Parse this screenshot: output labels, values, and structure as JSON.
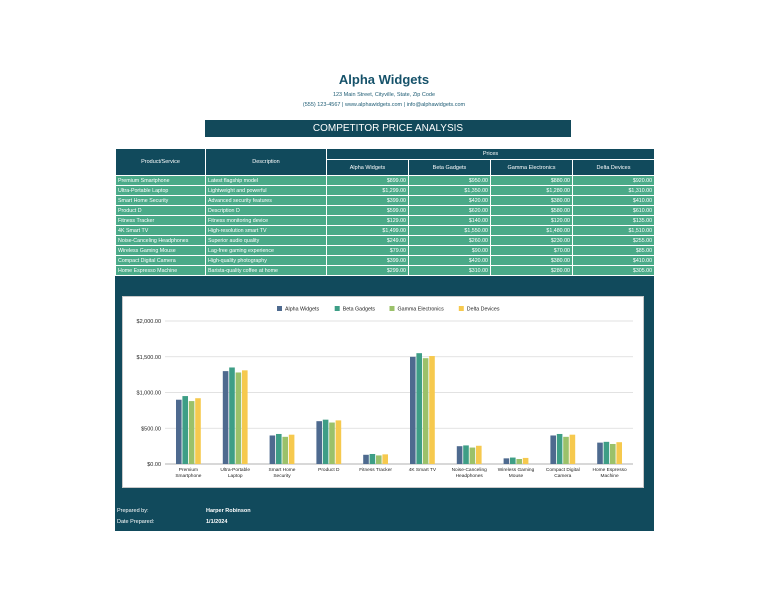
{
  "header": {
    "company": "Alpha Widgets",
    "address": "123 Main Street, Cityville, State, Zip Code",
    "contact": "(555) 123-4567 | www.alphawidgets.com | info@alphawidgets.com",
    "title": "COMPETITOR PRICE ANALYSIS"
  },
  "table": {
    "col_product": "Product/Service",
    "col_description": "Description",
    "col_prices": "Prices",
    "competitors": [
      "Alpha Widgets",
      "Beta Gadgets",
      "Gamma Electronics",
      "Delta Devices"
    ],
    "rows": [
      {
        "product": "Premium Smartphone",
        "description": "Latest flagship model",
        "prices": [
          "$899.00",
          "$950.00",
          "$880.00",
          "$920.00"
        ]
      },
      {
        "product": "Ultra-Portable Laptop",
        "description": "Lightweight and powerful",
        "prices": [
          "$1,299.00",
          "$1,350.00",
          "$1,280.00",
          "$1,310.00"
        ]
      },
      {
        "product": "Smart Home Security",
        "description": "Advanced security features",
        "prices": [
          "$399.00",
          "$420.00",
          "$380.00",
          "$410.00"
        ]
      },
      {
        "product": "Product D",
        "description": "Description D",
        "prices": [
          "$599.00",
          "$620.00",
          "$580.00",
          "$610.00"
        ]
      },
      {
        "product": "Fitness Tracker",
        "description": "Fitness monitoring device",
        "prices": [
          "$129.00",
          "$140.00",
          "$120.00",
          "$135.00"
        ]
      },
      {
        "product": "4K Smart TV",
        "description": "High-resolution smart TV",
        "prices": [
          "$1,499.00",
          "$1,550.00",
          "$1,480.00",
          "$1,510.00"
        ]
      },
      {
        "product": "Noise-Canceling Headphones",
        "description": "Superior audio quality",
        "prices": [
          "$249.00",
          "$260.00",
          "$230.00",
          "$255.00"
        ]
      },
      {
        "product": "Wireless Gaming Mouse",
        "description": "Lag-free gaming experience",
        "prices": [
          "$79.00",
          "$90.00",
          "$70.00",
          "$85.00"
        ]
      },
      {
        "product": "Compact Digital Camera",
        "description": "High-quality photography",
        "prices": [
          "$399.00",
          "$420.00",
          "$380.00",
          "$410.00"
        ]
      },
      {
        "product": "Home Espresso Machine",
        "description": "Barista-quality coffee at home",
        "prices": [
          "$299.00",
          "$310.00",
          "$280.00",
          "$305.00"
        ]
      }
    ]
  },
  "footer": {
    "prepared_by_label": "Prepared by:",
    "prepared_by_value": "Harper Robinson",
    "date_label": "Date Prepared:",
    "date_value": "1/1/2024"
  },
  "chart_data": {
    "type": "bar",
    "categories": [
      [
        "Premium",
        "Smartphone"
      ],
      [
        "Ultra-Portable",
        "Laptop"
      ],
      [
        "Smart Home",
        "Security"
      ],
      [
        "Product D"
      ],
      [
        "Fitness Tracker"
      ],
      [
        "4K Smart TV"
      ],
      [
        "Noise-Canceling",
        "Headphones"
      ],
      [
        "Wireless Gaming",
        "Mouse"
      ],
      [
        "Compact Digital",
        "Camera"
      ],
      [
        "Home Espresso",
        "Machine"
      ]
    ],
    "series": [
      {
        "name": "Alpha Widgets",
        "color": "#4e6a8f",
        "values": [
          899,
          1299,
          399,
          599,
          129,
          1499,
          249,
          79,
          399,
          299
        ]
      },
      {
        "name": "Beta Gadgets",
        "color": "#3e9e86",
        "values": [
          950,
          1350,
          420,
          620,
          140,
          1550,
          260,
          90,
          420,
          310
        ]
      },
      {
        "name": "Gamma Electronics",
        "color": "#9bc16a",
        "values": [
          880,
          1280,
          380,
          580,
          120,
          1480,
          230,
          70,
          380,
          280
        ]
      },
      {
        "name": "Delta Devices",
        "color": "#f6c94e",
        "values": [
          920,
          1310,
          410,
          610,
          135,
          1510,
          255,
          85,
          410,
          305
        ]
      }
    ],
    "yticks": [
      "$0.00",
      "$500.00",
      "$1,000.00",
      "$1,500.00",
      "$2,000.00"
    ],
    "ylim": [
      0,
      2000
    ],
    "grid": true,
    "legend": "top"
  },
  "colors": {
    "brand": "#114a5c",
    "row": "#4aaa88"
  }
}
